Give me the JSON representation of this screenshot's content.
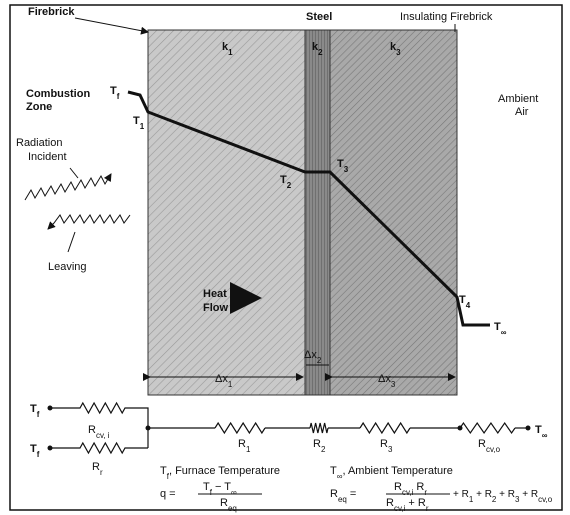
{
  "firebrick": "Firebrick",
  "steel": "Steel",
  "insulating": "Insulating Firebrick",
  "k1": [
    "k",
    "1"
  ],
  "k2": [
    "k",
    "2"
  ],
  "k3": [
    "k",
    "3"
  ],
  "combustion": "Combustion",
  "zone": "Zone",
  "ambient": "Ambient",
  "air": "Air",
  "radiation": "Radiation",
  "incident": "Incident",
  "leaving": "Leaving",
  "heat": "Heat",
  "flow": "Flow",
  "Tf": [
    "T",
    "f"
  ],
  "T1": [
    "T",
    "1"
  ],
  "T2": [
    "T",
    "2"
  ],
  "T3": [
    "T",
    "3"
  ],
  "T4": [
    "T",
    "4"
  ],
  "Tinf": [
    "T",
    "∞"
  ],
  "dx1": [
    "Δx",
    "1"
  ],
  "dx2": [
    "Δx",
    "2"
  ],
  "dx3": [
    "Δx",
    "3"
  ],
  "circuit": {
    "Tf_top": [
      "T",
      "f"
    ],
    "Tf_bottom": [
      "T",
      "f"
    ],
    "Rcvi": [
      "R",
      "cv, i"
    ],
    "Rr": [
      "R",
      "r"
    ],
    "R1": [
      "R",
      "1"
    ],
    "R2": [
      "R",
      "2"
    ],
    "R3": [
      "R",
      "3"
    ],
    "Rcvo": [
      "R",
      "cv,o"
    ],
    "Tinf": [
      "T",
      "∞"
    ]
  },
  "legend": {
    "furnace": [
      "T",
      "f",
      ", Furnace Temperature"
    ],
    "ambient": [
      "T",
      "∞",
      ", Ambient Temperature"
    ]
  },
  "eq1": {
    "lhs": "q =",
    "num": [
      "T",
      "f",
      " − T",
      "∞"
    ],
    "den": [
      "R",
      "eq"
    ]
  },
  "eq2": {
    "lhs": [
      "R",
      "eq",
      " ="
    ],
    "num": [
      "R",
      "cv,i",
      " R",
      "r"
    ],
    "den": [
      "R",
      "cv,i",
      " + R",
      "r"
    ],
    "rhs": [
      "+ R",
      "1",
      " + R",
      "2",
      " + R",
      "3",
      " + R",
      "cv,o"
    ]
  }
}
